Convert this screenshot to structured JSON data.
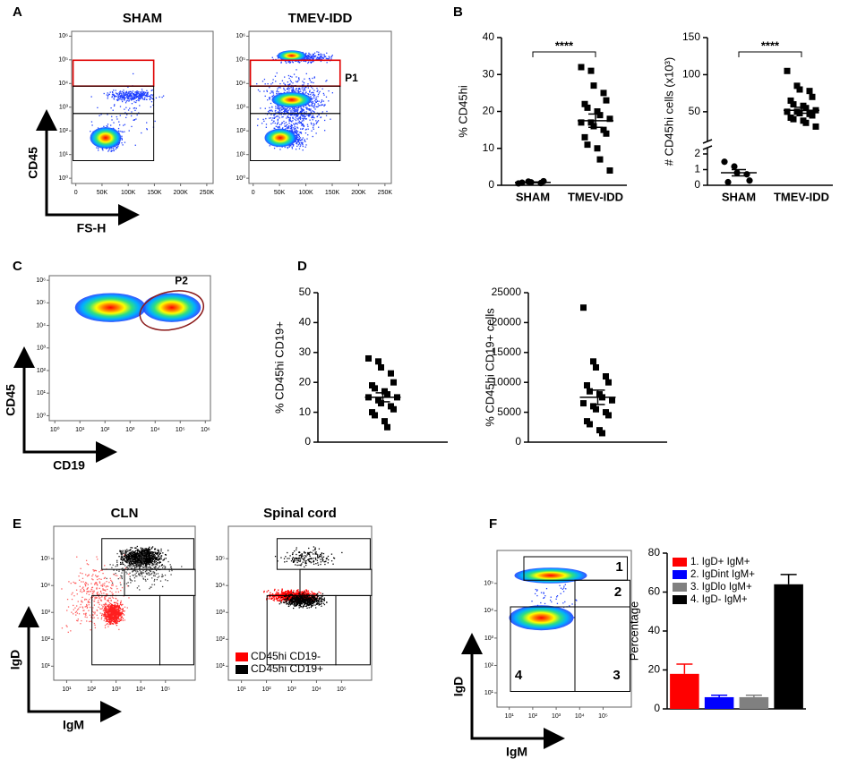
{
  "panel_labels": [
    "A",
    "B",
    "C",
    "D",
    "E",
    "F"
  ],
  "chart_data": [
    {
      "type": "flow",
      "title": "SHAM",
      "xlabel": "FS-H",
      "ylabel": "CD45",
      "xlim": [
        -8000,
        262144
      ],
      "xticks": [
        0,
        {
          "value": 50000,
          "label": "50K"
        },
        {
          "value": 100000,
          "label": "100K"
        },
        {
          "value": 150000,
          "label": "150K"
        },
        {
          "value": 200000,
          "label": "200K"
        },
        {
          "value": 250000,
          "label": "250K"
        }
      ],
      "ylog": true,
      "ylim": [
        0.6,
        1600000
      ],
      "yticks": [
        {
          "value": 1,
          "label": "10⁰"
        },
        {
          "value": 10,
          "label": "10¹"
        },
        {
          "value": 100,
          "label": "10²"
        },
        {
          "value": 1000,
          "label": "10³"
        },
        {
          "value": 10000,
          "label": "10⁴"
        },
        {
          "value": 100000,
          "label": "10⁵"
        },
        {
          "value": 1000000,
          "label": "10⁶"
        }
      ]
    },
    {
      "type": "flow",
      "title": "TMEV-IDD",
      "annotations": [
        "P1"
      ],
      "xlim": [
        -8000,
        262144
      ],
      "xticks": [
        0,
        {
          "value": 50000,
          "label": "50K"
        },
        {
          "value": 100000,
          "label": "100K"
        },
        {
          "value": 150000,
          "label": "150K"
        },
        {
          "value": 200000,
          "label": "200K"
        },
        {
          "value": 250000,
          "label": "250K"
        }
      ],
      "ylog": true,
      "ylim": [
        0.6,
        1600000
      ],
      "yticks": [
        {
          "value": 1,
          "label": "10⁰"
        },
        {
          "value": 10,
          "label": "10¹"
        },
        {
          "value": 100,
          "label": "10²"
        },
        {
          "value": 1000,
          "label": "10³"
        },
        {
          "value": 10000,
          "label": "10⁴"
        },
        {
          "value": 100000,
          "label": "10⁵"
        },
        {
          "value": 1000000,
          "label": "10⁶"
        }
      ]
    },
    {
      "type": "dot",
      "ylabel": "% CD45hi",
      "annotation": "****",
      "ylim": [
        0,
        40
      ],
      "yticks": [
        0,
        10,
        20,
        30,
        40
      ],
      "groups": [
        {
          "category": "SHAM",
          "marker": "circle",
          "values": [
            0.5,
            1,
            0.8,
            0.6,
            1.1,
            0.7
          ],
          "mean": 0.8,
          "sem": 0.1
        },
        {
          "category": "TMEV-IDD",
          "marker": "square",
          "values": [
            32,
            31,
            27,
            25,
            23,
            22,
            21,
            20,
            19,
            18,
            17,
            17,
            16,
            15,
            14,
            13,
            11,
            10,
            7,
            4
          ],
          "mean": 17.5,
          "sem": 1.8
        }
      ]
    },
    {
      "type": "dot",
      "ylabel": "# CD45hi cells (x10³)",
      "annotation": "****",
      "broken": true,
      "ylim": [
        0,
        2.4
      ],
      "yticks": [
        0,
        1,
        2
      ],
      "ylim_upper": [
        10,
        150
      ],
      "yticks_upper": [
        50,
        100,
        150
      ],
      "groups": [
        {
          "category": "SHAM",
          "marker": "circle",
          "values": [
            1.5,
            1.2,
            0.8,
            0.7,
            0.3,
            0.2
          ],
          "mean": 0.8,
          "sem": 0.2
        },
        {
          "category": "TMEV-IDD",
          "marker": "square",
          "values": [
            105,
            85,
            80,
            78,
            70,
            65,
            60,
            58,
            55,
            52,
            50,
            50,
            48,
            47,
            45,
            42,
            40,
            38,
            35,
            30
          ],
          "mean": 52,
          "sem": 4
        }
      ]
    },
    {
      "type": "flow",
      "xlabel": "CD19",
      "ylabel": "CD45",
      "annotations": [
        "P2"
      ],
      "xlog": true,
      "xlim": [
        0.6,
        1600000
      ],
      "xticks": [
        {
          "value": 1,
          "label": "10⁰"
        },
        {
          "value": 10,
          "label": "10¹"
        },
        {
          "value": 100,
          "label": "10²"
        },
        {
          "value": 1000,
          "label": "10³"
        },
        {
          "value": 10000,
          "label": "10⁴"
        },
        {
          "value": 100000,
          "label": "10⁵"
        },
        {
          "value": 1000000,
          "label": "10⁶"
        }
      ],
      "ylog": true,
      "ylim": [
        0.6,
        1600000
      ],
      "yticks": [
        {
          "value": 1,
          "label": "10⁰"
        },
        {
          "value": 10,
          "label": "10¹"
        },
        {
          "value": 100,
          "label": "10²"
        },
        {
          "value": 1000,
          "label": "10³"
        },
        {
          "value": 10000,
          "label": "10⁴"
        },
        {
          "value": 100000,
          "label": "10⁵"
        },
        {
          "value": 1000000,
          "label": "10⁶"
        }
      ]
    },
    {
      "type": "dot",
      "ylabel": "% CD45hi CD19+",
      "ylim": [
        0,
        50
      ],
      "yticks": [
        0,
        10,
        20,
        30,
        40,
        50
      ],
      "groups": [
        {
          "marker": "square",
          "values": [
            28,
            27,
            25,
            23,
            20,
            19,
            18,
            17,
            16,
            15,
            15,
            14,
            13,
            12,
            11,
            10,
            9,
            7,
            5
          ],
          "mean": 15,
          "sem": 1.5
        }
      ]
    },
    {
      "type": "dot",
      "ylabel": "% CD45hi CD19+ cells",
      "ylim": [
        0,
        25000
      ],
      "yticks": [
        0,
        5000,
        10000,
        15000,
        20000,
        25000
      ],
      "groups": [
        {
          "marker": "square",
          "values": [
            22500,
            13500,
            12500,
            11000,
            10000,
            9500,
            8500,
            8000,
            7500,
            7000,
            6500,
            6000,
            5500,
            5000,
            4500,
            3500,
            3000,
            2000,
            1500
          ],
          "mean": 7500,
          "sem": 1200
        }
      ]
    },
    {
      "type": "flow",
      "title": "CLN",
      "xlabel": "IgM",
      "ylabel": "IgD",
      "xlog": true,
      "xlim": [
        3,
        1600000
      ],
      "xticks": [
        {
          "value": 10,
          "label": "10¹"
        },
        {
          "value": 100,
          "label": "10²"
        },
        {
          "value": 1000,
          "label": "10³"
        },
        {
          "value": 10000,
          "label": "10⁴"
        },
        {
          "value": 100000,
          "label": "10⁵"
        }
      ],
      "ylog": true,
      "ylim": [
        3,
        1600000
      ],
      "yticks": [
        {
          "value": 10,
          "label": "10¹"
        },
        {
          "value": 100,
          "label": "10²"
        },
        {
          "value": 1000,
          "label": "10³"
        },
        {
          "value": 10000,
          "label": "10⁴"
        },
        {
          "value": 100000,
          "label": "10⁵"
        }
      ]
    },
    {
      "type": "flow",
      "title": "Spinal cord",
      "legend": [
        {
          "name": "CD45hi CD19-",
          "color": "#ff0000"
        },
        {
          "name": "CD45hi CD19+",
          "color": "#000000"
        }
      ],
      "xlog": true,
      "xlim": [
        3,
        1600000
      ],
      "xticks": [
        {
          "value": 10,
          "label": "10¹"
        },
        {
          "value": 100,
          "label": "10²"
        },
        {
          "value": 1000,
          "label": "10³"
        },
        {
          "value": 10000,
          "label": "10⁴"
        },
        {
          "value": 100000,
          "label": "10⁵"
        }
      ],
      "ylog": true,
      "ylim": [
        3,
        1600000
      ],
      "yticks": [
        {
          "value": 10,
          "label": "10¹"
        },
        {
          "value": 100,
          "label": "10²"
        },
        {
          "value": 1000,
          "label": "10³"
        },
        {
          "value": 10000,
          "label": "10⁴"
        },
        {
          "value": 100000,
          "label": "10⁵"
        }
      ]
    },
    {
      "type": "flow",
      "xlabel": "IgM",
      "ylabel": "IgD",
      "annotations": [
        "1",
        "2",
        "4",
        "3"
      ],
      "xlog": true,
      "xlim": [
        3,
        1600000
      ],
      "xticks": [
        {
          "value": 10,
          "label": "10¹"
        },
        {
          "value": 100,
          "label": "10²"
        },
        {
          "value": 1000,
          "label": "10³"
        },
        {
          "value": 10000,
          "label": "10⁴"
        },
        {
          "value": 100000,
          "label": "10⁵"
        }
      ],
      "ylog": true,
      "ylim": [
        3,
        1600000
      ],
      "yticks": [
        {
          "value": 10,
          "label": "10¹"
        },
        {
          "value": 100,
          "label": "10²"
        },
        {
          "value": 1000,
          "label": "10³"
        },
        {
          "value": 10000,
          "label": "10⁴"
        },
        {
          "value": 100000,
          "label": "10⁵"
        }
      ]
    },
    {
      "type": "bar",
      "ylabel": "Percentage",
      "ylim": [
        0,
        80
      ],
      "yticks": [
        0,
        20,
        40,
        60,
        80
      ],
      "categories": [
        "1. IgD+ IgM+",
        "2. IgDint IgM+",
        "3. IgDlo IgM+",
        "4. IgD- IgM+"
      ],
      "values": [
        18,
        6,
        6,
        64
      ],
      "errors": [
        5,
        1,
        1,
        5
      ],
      "colors": [
        "#ff0000",
        "#0000ff",
        "#808080",
        "#000000"
      ]
    }
  ]
}
